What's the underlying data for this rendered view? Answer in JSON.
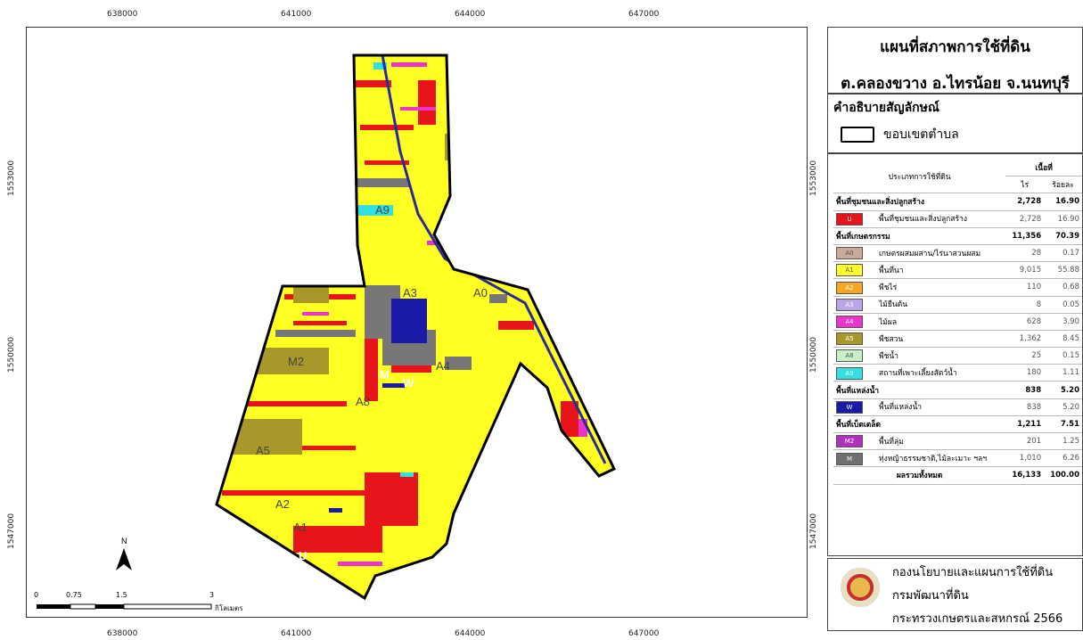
{
  "coords": {
    "top": [
      "638000",
      "641000",
      "644000",
      "647000"
    ],
    "bottom": [
      "638000",
      "641000",
      "644000",
      "647000"
    ],
    "left": [
      "1553000",
      "1550000",
      "1547000"
    ],
    "right": [
      "1553000",
      "1550000",
      "1547000"
    ]
  },
  "map": {
    "zone_labels": [
      "A9",
      "A3",
      "A0",
      "M2",
      "M",
      "W",
      "A4",
      "A8",
      "A5",
      "A2",
      "A1",
      "U"
    ],
    "north_label": "N",
    "scale": {
      "ticks": [
        "0",
        "0.75",
        "1.5",
        "3"
      ],
      "unit": "กิโลเมตร"
    }
  },
  "title": {
    "line1": "แผนที่สภาพการใช้ที่ดิน",
    "line2": "ต.คลองขวาง อ.ไทรน้อย จ.นนทบุรี"
  },
  "legend": {
    "heading": "คำอธิบายสัญลักษณ์",
    "boundary_label": "ขอบเขตตำบล"
  },
  "table": {
    "header_type": "ประเภทการใช้ที่ดิน",
    "header_area": "เนื้อที่",
    "header_rai": "ไร่",
    "header_pct": "ร้อยละ",
    "rows": [
      {
        "kind": "group",
        "label": "พื้นที่ชุมชนและสิ่งปลูกสร้าง",
        "rai": "2,728",
        "pct": "16.90"
      },
      {
        "kind": "item",
        "code": "U",
        "color": "#e8141c",
        "label": "พื้นที่ชุมชนและสิ่งปลูกสร้าง",
        "rai": "2,728",
        "pct": "16.90"
      },
      {
        "kind": "group",
        "label": "พื้นที่เกษตรกรรม",
        "rai": "11,356",
        "pct": "70.39"
      },
      {
        "kind": "item",
        "code": "A0",
        "color": "#c9a99a",
        "label": "เกษตรผสมผสาน/ไร่นาสวนผสม",
        "rai": "28",
        "pct": "0.17"
      },
      {
        "kind": "item",
        "code": "A1",
        "color": "#ffff2a",
        "label": "พื้นที่นา",
        "rai": "9,015",
        "pct": "55.88"
      },
      {
        "kind": "item",
        "code": "A2",
        "color": "#f5a623",
        "label": "พืชไร่",
        "rai": "110",
        "pct": "0.68"
      },
      {
        "kind": "item",
        "code": "A3",
        "color": "#b9a5e8",
        "label": "ไม้ยืนต้น",
        "rai": "8",
        "pct": "0.05"
      },
      {
        "kind": "item",
        "code": "A4",
        "color": "#ee33cc",
        "label": "ไม้ผล",
        "rai": "628",
        "pct": "3.90"
      },
      {
        "kind": "item",
        "code": "A5",
        "color": "#a8982a",
        "label": "พืชสวน",
        "rai": "1,362",
        "pct": "8.45"
      },
      {
        "kind": "item",
        "code": "A8",
        "color": "#c8f0c8",
        "label": "พืชน้ำ",
        "rai": "25",
        "pct": "0.15"
      },
      {
        "kind": "item",
        "code": "A9",
        "color": "#33e0e0",
        "label": "สถานที่เพาะเลี้ยงสัตว์น้ำ",
        "rai": "180",
        "pct": "1.11"
      },
      {
        "kind": "group",
        "label": "พื้นที่แหล่งน้ำ",
        "rai": "838",
        "pct": "5.20"
      },
      {
        "kind": "item",
        "code": "W",
        "color": "#1a1aa8",
        "label": "พื้นที่แหล่งน้ำ",
        "rai": "838",
        "pct": "5.20"
      },
      {
        "kind": "group",
        "label": "พื้นที่เบ็ดเตล็ด",
        "rai": "1,211",
        "pct": "7.51"
      },
      {
        "kind": "item",
        "code": "M2",
        "color": "#b030c0",
        "label": "พื้นที่ลุ่ม",
        "rai": "201",
        "pct": "1.25"
      },
      {
        "kind": "item",
        "code": "M",
        "color": "#707070",
        "label": "ทุ่งหญ้าธรรมชาติ,ไม้ละเมาะ ฯลฯ",
        "rai": "1,010",
        "pct": "6.26"
      },
      {
        "kind": "total",
        "label": "ผลรวมทั้งหมด",
        "rai": "16,133",
        "pct": "100.00"
      }
    ]
  },
  "credit": {
    "line1": "กองนโยบายและแผนการใช้ที่ดิน",
    "line2": "กรมพัฒนาที่ดิน",
    "line3": "กระทรวงเกษตรและสหกรณ์ 2566"
  }
}
